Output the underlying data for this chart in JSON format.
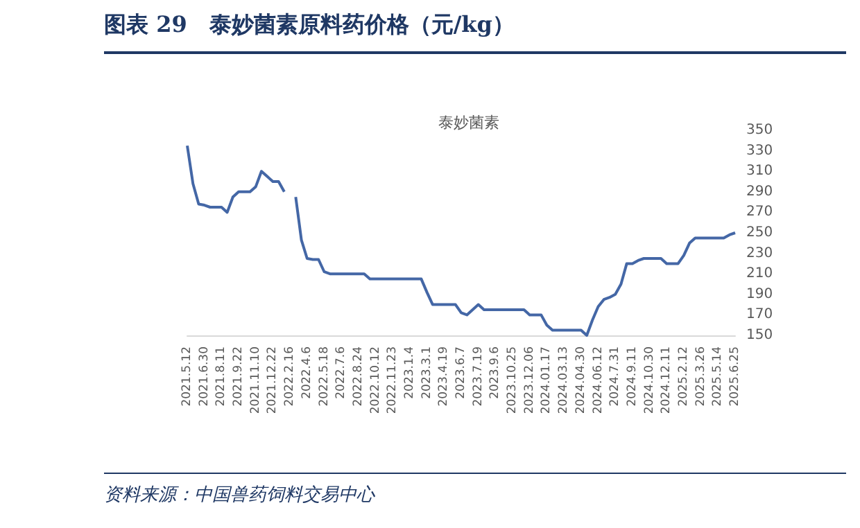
{
  "chart_data": {
    "type": "line",
    "title": "图表 29　泰妙菌素原料药价格（元/kg）",
    "subtitle": "泰妙菌素",
    "annotations": [
      "资料来源：中国兽药饲料交易中心"
    ],
    "categories": [
      "2021.5.12",
      null,
      null,
      "2021.6.30",
      null,
      null,
      "2021.8.11",
      null,
      null,
      "2021.9.22",
      null,
      null,
      "2021.11.10",
      null,
      null,
      "2021.12.22",
      null,
      null,
      "2022.2.16",
      null,
      null,
      "2022.4.6",
      null,
      null,
      "2022.5.18",
      null,
      null,
      "2022.7.6",
      null,
      null,
      "2022.8.24",
      null,
      null,
      "2022.10.12",
      null,
      null,
      "2022.11.23",
      null,
      null,
      "2023.1.4",
      null,
      null,
      "2023.3.1",
      null,
      null,
      "2023.4.19",
      null,
      null,
      "2023.6.7",
      null,
      null,
      "2023.7.19",
      null,
      null,
      "2023.9.6",
      null,
      null,
      "2023.10.25",
      null,
      null,
      "2023.12.06",
      null,
      null,
      "2024.01.17",
      null,
      null,
      "2024.03.13",
      null,
      null,
      "2024.04.30",
      null,
      null,
      "2024.06.12",
      null,
      null,
      "2024.7.31",
      null,
      null,
      "2024.9.11",
      null,
      null,
      "2024.10.30",
      null,
      null,
      "2024.12.11",
      null,
      null,
      "2025.2.12",
      null,
      null,
      "2025.3.26",
      null,
      null,
      "2025.5.14",
      null,
      null,
      "2025.6.25"
    ],
    "values": [
      335,
      298,
      278,
      277,
      275,
      275,
      275,
      270,
      285,
      290,
      290,
      290,
      295,
      310,
      305,
      300,
      300,
      290,
      null,
      285,
      243,
      225,
      224,
      224,
      212,
      210,
      210,
      210,
      210,
      210,
      210,
      210,
      205,
      205,
      205,
      205,
      205,
      205,
      205,
      205,
      205,
      205,
      192,
      180,
      180,
      180,
      180,
      180,
      172,
      170,
      175,
      180,
      175,
      175,
      175,
      175,
      175,
      175,
      175,
      175,
      170,
      170,
      170,
      160,
      155,
      155,
      155,
      155,
      155,
      155,
      150,
      165,
      178,
      185,
      187,
      190,
      200,
      220,
      220,
      223,
      225,
      225,
      225,
      225,
      220,
      220,
      220,
      228,
      240,
      245,
      245,
      245,
      245,
      245,
      245,
      248,
      250
    ],
    "color": "#4467a6",
    "ylim": [
      150,
      350
    ],
    "yticks": [
      150,
      170,
      190,
      210,
      230,
      250,
      270,
      290,
      310,
      330,
      350
    ],
    "grid": false
  }
}
